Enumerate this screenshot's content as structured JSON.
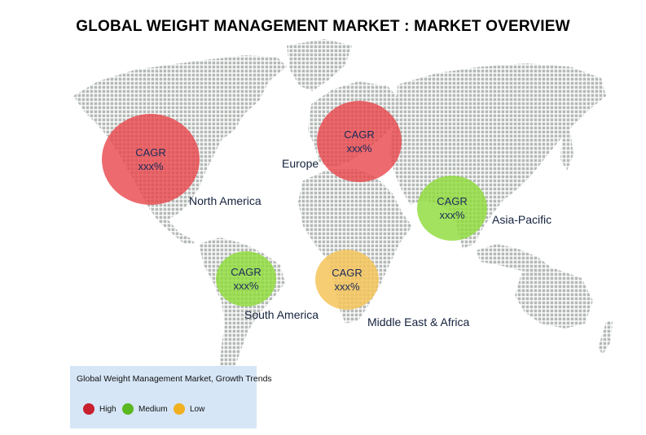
{
  "title": "GLOBAL WEIGHT MANAGEMENT MARKET : MARKET OVERVIEW",
  "regions": [
    {
      "key": "north-america",
      "name": "North America",
      "cagr_label": "CAGR",
      "cagr_value": "xxx%",
      "level": "High",
      "color": "#e8454a"
    },
    {
      "key": "europe",
      "name": "Europe",
      "cagr_label": "CAGR",
      "cagr_value": "xxx%",
      "level": "High",
      "color": "#e8454a"
    },
    {
      "key": "asia-pacific",
      "name": "Asia-Pacific",
      "cagr_label": "CAGR",
      "cagr_value": "xxx%",
      "level": "Medium",
      "color": "#8fdc3a"
    },
    {
      "key": "south-america",
      "name": "South America",
      "cagr_label": "CAGR",
      "cagr_value": "xxx%",
      "level": "Medium",
      "color": "#8fdc3a"
    },
    {
      "key": "middle-east-africa",
      "name": "Middle East & Africa",
      "cagr_label": "CAGR",
      "cagr_value": "xxx%",
      "level": "Low",
      "color": "#f5c45a"
    }
  ],
  "legend": {
    "title": "Global Weight Management Market, Growth Trends",
    "items": [
      {
        "label": "High",
        "color": "#c8202e"
      },
      {
        "label": "Medium",
        "color": "#5ab820"
      },
      {
        "label": "Low",
        "color": "#f0b020"
      }
    ]
  },
  "map_dot_color": "#b4b9b6"
}
